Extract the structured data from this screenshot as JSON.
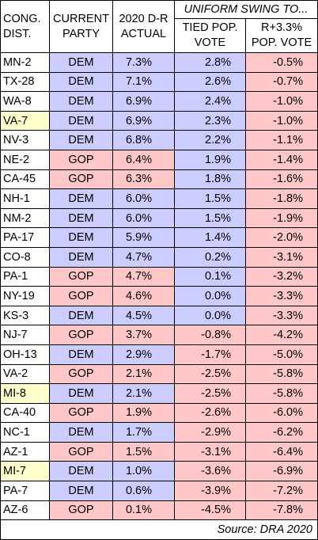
{
  "headers": {
    "district": [
      "CONG.",
      "DIST."
    ],
    "party": [
      "CURRENT",
      "PARTY"
    ],
    "actual": [
      "2020 D-R",
      "ACTUAL"
    ],
    "swing": "UNIFORM SWING TO...",
    "tied": [
      "TIED POP.",
      "VOTE"
    ],
    "rplus": [
      "R+3.3%",
      "POP. VOTE"
    ]
  },
  "colors": {
    "dem": "#ccccff",
    "gop": "#ffc7c7",
    "highlight_district": "#ffffcc",
    "negative": "#ffc7c7",
    "positive": "#ccccff"
  },
  "rows": [
    {
      "district": "MN-2",
      "party": "DEM",
      "actual": "7.3%",
      "tied": "2.8%",
      "rplus": "-0.5%",
      "highlight": false
    },
    {
      "district": "TX-28",
      "party": "DEM",
      "actual": "7.1%",
      "tied": "2.6%",
      "rplus": "-0.7%",
      "highlight": false
    },
    {
      "district": "WA-8",
      "party": "DEM",
      "actual": "6.9%",
      "tied": "2.4%",
      "rplus": "-1.0%",
      "highlight": false
    },
    {
      "district": "VA-7",
      "party": "DEM",
      "actual": "6.9%",
      "tied": "2.3%",
      "rplus": "-1.0%",
      "highlight": true
    },
    {
      "district": "NV-3",
      "party": "DEM",
      "actual": "6.8%",
      "tied": "2.2%",
      "rplus": "-1.1%",
      "highlight": false
    },
    {
      "district": "NE-2",
      "party": "GOP",
      "actual": "6.4%",
      "tied": "1.9%",
      "rplus": "-1.4%",
      "highlight": false
    },
    {
      "district": "CA-45",
      "party": "GOP",
      "actual": "6.3%",
      "tied": "1.8%",
      "rplus": "-1.6%",
      "highlight": false
    },
    {
      "district": "NH-1",
      "party": "DEM",
      "actual": "6.0%",
      "tied": "1.5%",
      "rplus": "-1.8%",
      "highlight": false
    },
    {
      "district": "NM-2",
      "party": "DEM",
      "actual": "6.0%",
      "tied": "1.5%",
      "rplus": "-1.9%",
      "highlight": false
    },
    {
      "district": "PA-17",
      "party": "DEM",
      "actual": "5.9%",
      "tied": "1.4%",
      "rplus": "-2.0%",
      "highlight": false
    },
    {
      "district": "CO-8",
      "party": "DEM",
      "actual": "4.7%",
      "tied": "0.2%",
      "rplus": "-3.1%",
      "highlight": false
    },
    {
      "district": "PA-1",
      "party": "GOP",
      "actual": "4.7%",
      "tied": "0.1%",
      "rplus": "-3.2%",
      "highlight": false
    },
    {
      "district": "NY-19",
      "party": "GOP",
      "actual": "4.6%",
      "tied": "0.0%",
      "rplus": "-3.3%",
      "highlight": false
    },
    {
      "district": "KS-3",
      "party": "DEM",
      "actual": "4.5%",
      "tied": "0.0%",
      "rplus": "-3.3%",
      "highlight": false
    },
    {
      "district": "NJ-7",
      "party": "GOP",
      "actual": "3.7%",
      "tied": "-0.8%",
      "rplus": "-4.2%",
      "highlight": false
    },
    {
      "district": "OH-13",
      "party": "DEM",
      "actual": "2.9%",
      "tied": "-1.7%",
      "rplus": "-5.0%",
      "highlight": false
    },
    {
      "district": "VA-2",
      "party": "GOP",
      "actual": "2.1%",
      "tied": "-2.5%",
      "rplus": "-5.8%",
      "highlight": false
    },
    {
      "district": "MI-8",
      "party": "DEM",
      "actual": "2.1%",
      "tied": "-2.5%",
      "rplus": "-5.8%",
      "highlight": true
    },
    {
      "district": "CA-40",
      "party": "GOP",
      "actual": "1.9%",
      "tied": "-2.6%",
      "rplus": "-6.0%",
      "highlight": false
    },
    {
      "district": "NC-1",
      "party": "DEM",
      "actual": "1.7%",
      "tied": "-2.9%",
      "rplus": "-6.2%",
      "highlight": false
    },
    {
      "district": "AZ-1",
      "party": "GOP",
      "actual": "1.5%",
      "tied": "-3.1%",
      "rplus": "-6.4%",
      "highlight": false
    },
    {
      "district": "MI-7",
      "party": "DEM",
      "actual": "1.0%",
      "tied": "-3.6%",
      "rplus": "-6.9%",
      "highlight": true
    },
    {
      "district": "PA-7",
      "party": "DEM",
      "actual": "0.6%",
      "tied": "-3.9%",
      "rplus": "-7.2%",
      "highlight": false
    },
    {
      "district": "AZ-6",
      "party": "GOP",
      "actual": "0.1%",
      "tied": "-4.5%",
      "rplus": "-7.8%",
      "highlight": false
    }
  ],
  "source": "Source: DRA 2020"
}
